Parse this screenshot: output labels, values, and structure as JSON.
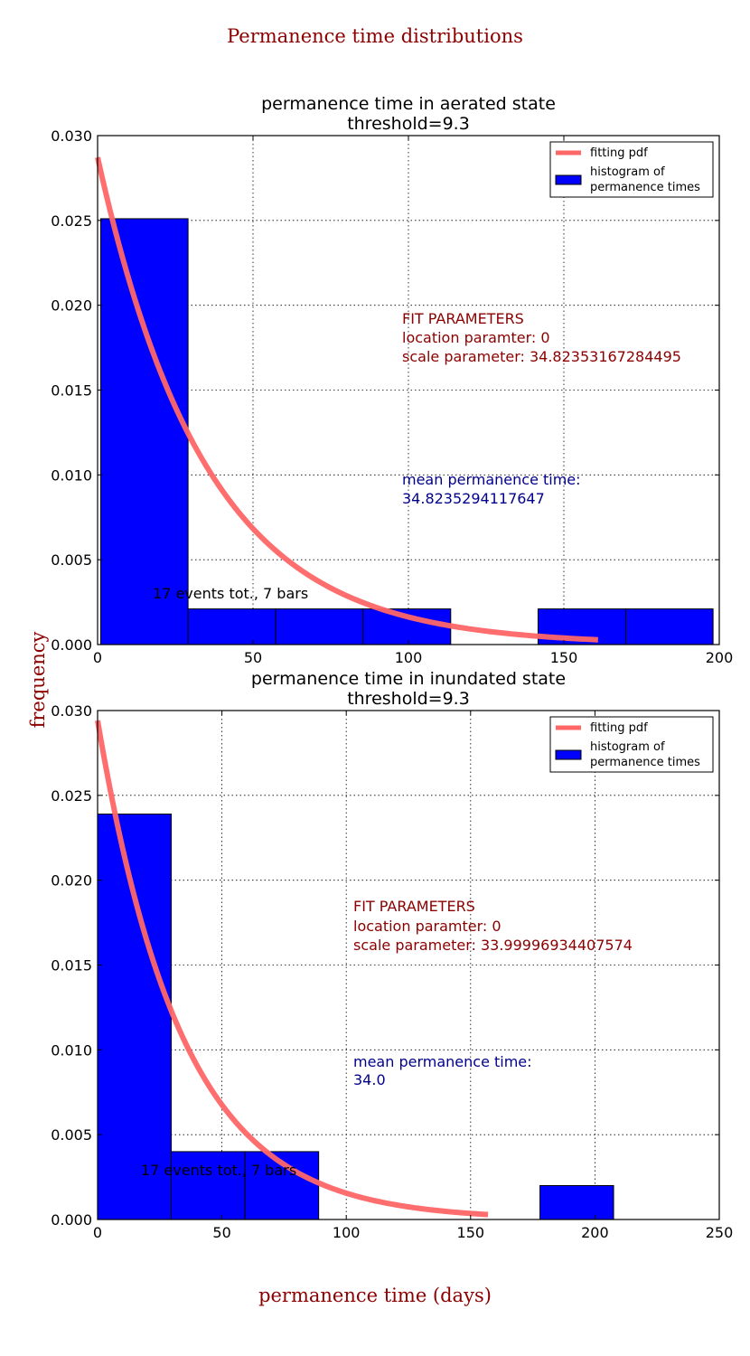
{
  "figure": {
    "suptitle": "Permanence time distributions",
    "ylabel": "frequency",
    "xlabel": "permanence time (days)"
  },
  "colors": {
    "title_red": "#8b0000",
    "param_red": "#8b0000",
    "mean_blue": "#00008b",
    "bar_fill": "#0000ff",
    "pdf_line": "#ff6666"
  },
  "chart_data": [
    {
      "type": "bar",
      "title_line1": "permanence time in aerated state",
      "title_line2": "threshold=9.3",
      "xlim": [
        0,
        200
      ],
      "ylim": [
        0,
        0.03
      ],
      "xticks": [
        0,
        50,
        100,
        150,
        200
      ],
      "yticks": [
        0.0,
        0.005,
        0.01,
        0.015,
        0.02,
        0.025,
        0.03
      ],
      "ytick_labels": [
        "0.000",
        "0.005",
        "0.010",
        "0.015",
        "0.020",
        "0.025",
        "0.030"
      ],
      "grid": true,
      "bins": [
        {
          "x0": 1,
          "x1": 29.1,
          "value": 0.0251
        },
        {
          "x0": 29.1,
          "x1": 57.3,
          "value": 0.0021
        },
        {
          "x0": 57.3,
          "x1": 85.4,
          "value": 0.0021
        },
        {
          "x0": 85.4,
          "x1": 113.6,
          "value": 0.0021
        },
        {
          "x0": 113.6,
          "x1": 141.7,
          "value": 0.0
        },
        {
          "x0": 141.7,
          "x1": 169.9,
          "value": 0.0021
        },
        {
          "x0": 169.9,
          "x1": 198,
          "value": 0.0021
        }
      ],
      "pdf": {
        "loc": 0,
        "scale": 34.82353167284495,
        "x_range": [
          0,
          161
        ]
      },
      "legend": {
        "line_label": "fitting pdf",
        "bar_label_line1": "histogram of",
        "bar_label_line2": "permanence times",
        "position": "top-right"
      },
      "annotations": {
        "events": "17 events tot., 7 bars",
        "fit_header": "FIT PARAMETERS",
        "fit_location": "location paramter: 0",
        "fit_scale": "scale parameter: 34.82353167284495",
        "mean_label": "mean permanence time:",
        "mean_value": "34.8235294117647"
      }
    },
    {
      "type": "bar",
      "title_line1": "permanence time in inundated state",
      "title_line2": "threshold=9.3",
      "xlim": [
        0,
        250
      ],
      "ylim": [
        0,
        0.03
      ],
      "xticks": [
        0,
        50,
        100,
        150,
        200,
        250
      ],
      "yticks": [
        0.0,
        0.005,
        0.01,
        0.015,
        0.02,
        0.025,
        0.03
      ],
      "ytick_labels": [
        "0.000",
        "0.005",
        "0.010",
        "0.015",
        "0.020",
        "0.025",
        "0.030"
      ],
      "grid": true,
      "bins": [
        {
          "x0": 0,
          "x1": 29.6,
          "value": 0.0239
        },
        {
          "x0": 29.6,
          "x1": 59.3,
          "value": 0.004
        },
        {
          "x0": 59.3,
          "x1": 88.9,
          "value": 0.004
        },
        {
          "x0": 88.9,
          "x1": 118.6,
          "value": 0.0
        },
        {
          "x0": 118.6,
          "x1": 148.2,
          "value": 0.0
        },
        {
          "x0": 148.2,
          "x1": 177.9,
          "value": 0.0
        },
        {
          "x0": 177.9,
          "x1": 207.5,
          "value": 0.002
        }
      ],
      "pdf": {
        "loc": 0,
        "scale": 33.99996934407574,
        "x_range": [
          0,
          157
        ]
      },
      "legend": {
        "line_label": "fitting pdf",
        "bar_label_line1": "histogram of",
        "bar_label_line2": "permanence times",
        "position": "top-right"
      },
      "annotations": {
        "events": "17 events tot., 7 bars",
        "fit_header": "FIT PARAMETERS",
        "fit_location": "location paramter: 0",
        "fit_scale": "scale parameter: 33.99996934407574",
        "mean_label": "mean permanence time:",
        "mean_value": "34.0"
      }
    }
  ]
}
